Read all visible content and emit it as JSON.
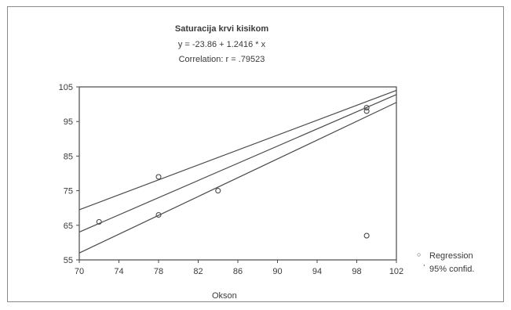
{
  "chart_data": {
    "type": "scatter",
    "title": "Saturacija krvi kisikom",
    "equation": "y = -23.86 + 1.2416 * x",
    "correlation": "Correlation: r = .79523",
    "xlabel": "Okson",
    "ylabel": "",
    "xlim": [
      70,
      102
    ],
    "ylim": [
      55,
      105
    ],
    "xticks": [
      "70",
      "74",
      "78",
      "82",
      "86",
      "90",
      "94",
      "98",
      "102"
    ],
    "yticks": [
      "105",
      "95",
      "85",
      "75",
      "65",
      "55"
    ],
    "points": [
      {
        "x": 72,
        "y": 66
      },
      {
        "x": 78,
        "y": 79
      },
      {
        "x": 78,
        "y": 68
      },
      {
        "x": 84,
        "y": 75
      },
      {
        "x": 99,
        "y": 99
      },
      {
        "x": 99,
        "y": 98
      },
      {
        "x": 99,
        "y": 62
      }
    ],
    "regression": {
      "intercept": -23.86,
      "slope": 1.2416
    },
    "confidence_upper": [
      {
        "x": 70,
        "y": 69.5
      },
      {
        "x": 102,
        "y": 104
      }
    ],
    "confidence_lower": [
      {
        "x": 70,
        "y": 57
      },
      {
        "x": 102,
        "y": 100.5
      }
    ],
    "legend": {
      "regression": "Regression",
      "confidence": "95% confid.",
      "position": "right-bottom"
    },
    "grid": false
  },
  "colors": {
    "line": "#4a4a4a",
    "point": "#4a4a4a",
    "axis": "#4a4a4a"
  }
}
